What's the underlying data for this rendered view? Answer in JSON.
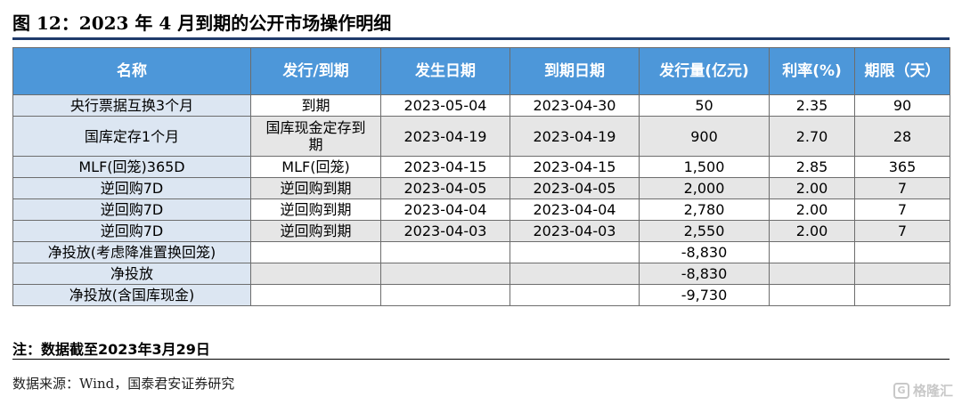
{
  "title": "图 12：2023 年 4 月到期的公开市场操作明细",
  "table": {
    "headers": [
      "名称",
      "发行/到期",
      "发生日期",
      "到期日期",
      "发行量(亿元)",
      "利率(%)",
      "期限（天）"
    ],
    "rows": [
      [
        "央行票据互换3个月",
        "到期",
        "2023-05-04",
        "2023-04-30",
        "50",
        "2.35",
        "90"
      ],
      [
        "国库定存1个月",
        "国库现金定存到期",
        "2023-04-19",
        "2023-04-19",
        "900",
        "2.70",
        "28"
      ],
      [
        "MLF(回笼)365D",
        "MLF(回笼)",
        "2023-04-15",
        "2023-04-15",
        "1,500",
        "2.85",
        "365"
      ],
      [
        "逆回购7D",
        "逆回购到期",
        "2023-04-05",
        "2023-04-05",
        "2,000",
        "2.00",
        "7"
      ],
      [
        "逆回购7D",
        "逆回购到期",
        "2023-04-04",
        "2023-04-04",
        "2,780",
        "2.00",
        "7"
      ],
      [
        "逆回购7D",
        "逆回购到期",
        "2023-04-03",
        "2023-04-03",
        "2,550",
        "2.00",
        "7"
      ],
      [
        "净投放(考虑降准置换回笼)",
        "",
        "",
        "",
        "-8,830",
        "",
        ""
      ],
      [
        "净投放",
        "",
        "",
        "",
        "-8,830",
        "",
        ""
      ],
      [
        "净投放(含国库现金)",
        "",
        "",
        "",
        "-9,730",
        "",
        ""
      ]
    ]
  },
  "note": "注：数据截至2023年3月29日",
  "source": "数据来源：Wind，国泰君安证券研究",
  "watermark": {
    "text": "格隆汇",
    "icon": "gelonghui-logo-icon"
  },
  "colors": {
    "header_bg": "#4d97d9",
    "label_bg": "#dce6f2",
    "alt_row_bg": "#e6e6e6",
    "title_rule": "#1f3a6b"
  }
}
